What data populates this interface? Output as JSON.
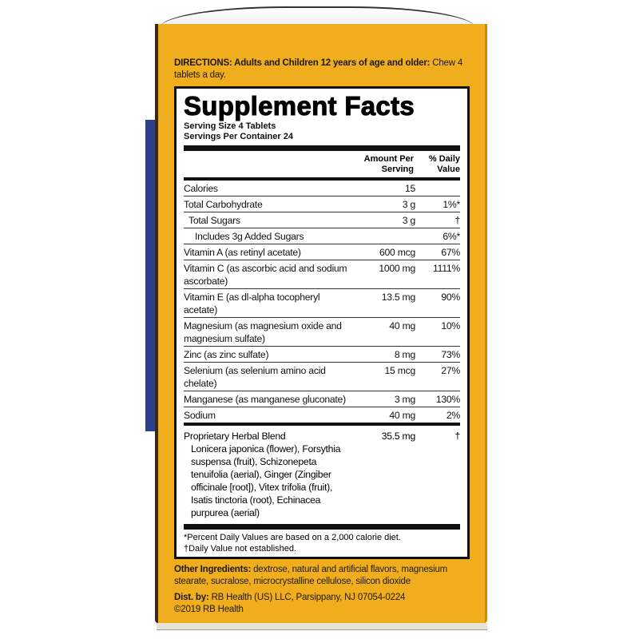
{
  "directions": {
    "label": "DIRECTIONS: Adults and Children 12 years of age and older:",
    "text": "Chew 4 tablets a day."
  },
  "facts": {
    "title": "Supplement Facts",
    "serving_size": "Serving Size 4 Tablets",
    "servings_per_container": "Servings Per Container 24",
    "col_amount": "Amount Per Serving",
    "col_dv": "% Daily Value",
    "rows": [
      {
        "name": "Calories",
        "amount": "15",
        "dv": ""
      },
      {
        "name": "Total Carbohydrate",
        "amount": "3 g",
        "dv": "1%*"
      },
      {
        "name": "Total Sugars",
        "amount": "3 g",
        "dv": "†"
      },
      {
        "name": "Includes 3g Added Sugars",
        "amount": "",
        "dv": "6%*"
      },
      {
        "name": "Vitamin A (as retinyl acetate)",
        "amount": "600 mcg",
        "dv": "67%"
      },
      {
        "name": "Vitamin C (as ascorbic acid and sodium ascorbate)",
        "amount": "1000 mg",
        "dv": "1111%"
      },
      {
        "name": "Vitamin E (as dl-alpha tocopheryl acetate)",
        "amount": "13.5 mg",
        "dv": "90%"
      },
      {
        "name": "Magnesium (as magnesium oxide and magnesium sulfate)",
        "amount": "40 mg",
        "dv": "10%"
      },
      {
        "name": "Zinc (as zinc sulfate)",
        "amount": "8 mg",
        "dv": "73%"
      },
      {
        "name": "Selenium (as selenium amino acid chelate)",
        "amount": "15 mcg",
        "dv": "27%"
      },
      {
        "name": "Manganese (as manganese gluconate)",
        "amount": "3 mg",
        "dv": "130%"
      },
      {
        "name": "Sodium",
        "amount": "40 mg",
        "dv": "2%"
      }
    ],
    "blend": {
      "name": "Proprietary Herbal Blend",
      "amount": "35.5 mg",
      "dv": "†",
      "ingredients": "Lonicera japonica (flower), Forsythia suspensa (fruit), Schizonepeta tenuifolia (aerial), Ginger (Zingiber officinale [root]), Vitex trifolia (fruit), Isatis tinctoria (root), Echinacea purpurea (aerial)"
    },
    "footnote_1": "*Percent Daily Values are based on a 2,000 calorie diet.",
    "footnote_2": "†Daily Value not established."
  },
  "other_ingredients": {
    "label": "Other Ingredients:",
    "text": "dextrose, natural and artificial flavors, magnesium stearate, sucralose, microcrystalline cellulose, silicon dioxide"
  },
  "distributor": {
    "label": "Dist. by:",
    "text": "RB Health (US) LLC, Parsippany, NJ 07054-0224",
    "copyright": "©2019 RB Health"
  },
  "colors": {
    "box": "#f0ae1e",
    "label_bg": "#ffffff",
    "ink": "#111111"
  }
}
